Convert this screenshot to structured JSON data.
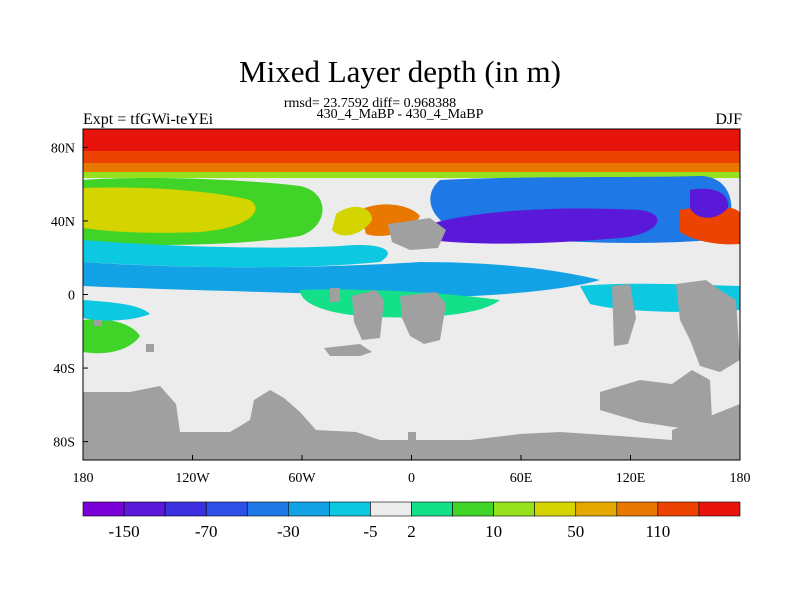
{
  "title": "Mixed Layer depth (in m)",
  "stats": "rmsd= 23.7592 diff= 0.968388",
  "subtitle": "430_4_MaBP - 430_4_MaBP",
  "left_label": "Expt = tfGWi-teYEi",
  "right_label": "DJF",
  "colors": {
    "land": "#a0a0a0",
    "levels": [
      "#7a00d8",
      "#5a18d8",
      "#3c30e0",
      "#2c50e8",
      "#1e78e6",
      "#14a2e6",
      "#0cc8e0",
      "#ececec",
      "#14e08a",
      "#40d428",
      "#96e01c",
      "#d4d400",
      "#e4a800",
      "#e87800",
      "#ec4400",
      "#e8140c"
    ]
  },
  "chart_data": {
    "type": "heatmap",
    "projection": "cylindrical-equidistant",
    "x_ticks": [
      "180",
      "120W",
      "60W",
      "0",
      "60E",
      "120E",
      "180"
    ],
    "y_ticks": [
      "80N",
      "40N",
      "0",
      "40S",
      "80S"
    ],
    "x_range": [
      -180,
      180
    ],
    "y_range": [
      -90,
      90
    ],
    "colorbar": {
      "labels": [
        "-150",
        "-70",
        "-30",
        "-5",
        "2",
        "10",
        "50",
        "110"
      ],
      "label_after_box": [
        1,
        3,
        5,
        7,
        8,
        10,
        12,
        14
      ],
      "n_boxes": 16
    }
  }
}
